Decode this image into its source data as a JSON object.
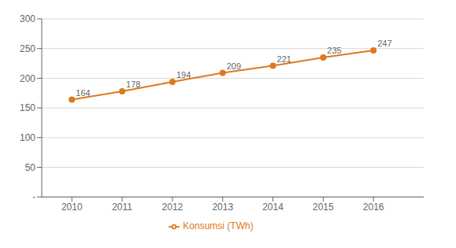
{
  "chart_data": {
    "type": "line",
    "x": [
      2010,
      2011,
      2012,
      2013,
      2014,
      2015,
      2016
    ],
    "series": [
      {
        "name": "Konsumsi (TWh)",
        "color": "#E07820",
        "values": [
          164,
          178,
          194,
          209,
          221,
          235,
          247
        ],
        "marker": "circle"
      }
    ],
    "xlim": [
      2009.4,
      2017.0
    ],
    "xticks": [
      2010,
      2011,
      2012,
      2013,
      2014,
      2015,
      2016
    ],
    "ylim": [
      0,
      300
    ],
    "yticks": [
      {
        "value": 0,
        "label": "-"
      },
      50,
      100,
      150,
      200,
      250,
      300
    ],
    "grid": true,
    "legend": "bottom",
    "data_labels": true
  }
}
